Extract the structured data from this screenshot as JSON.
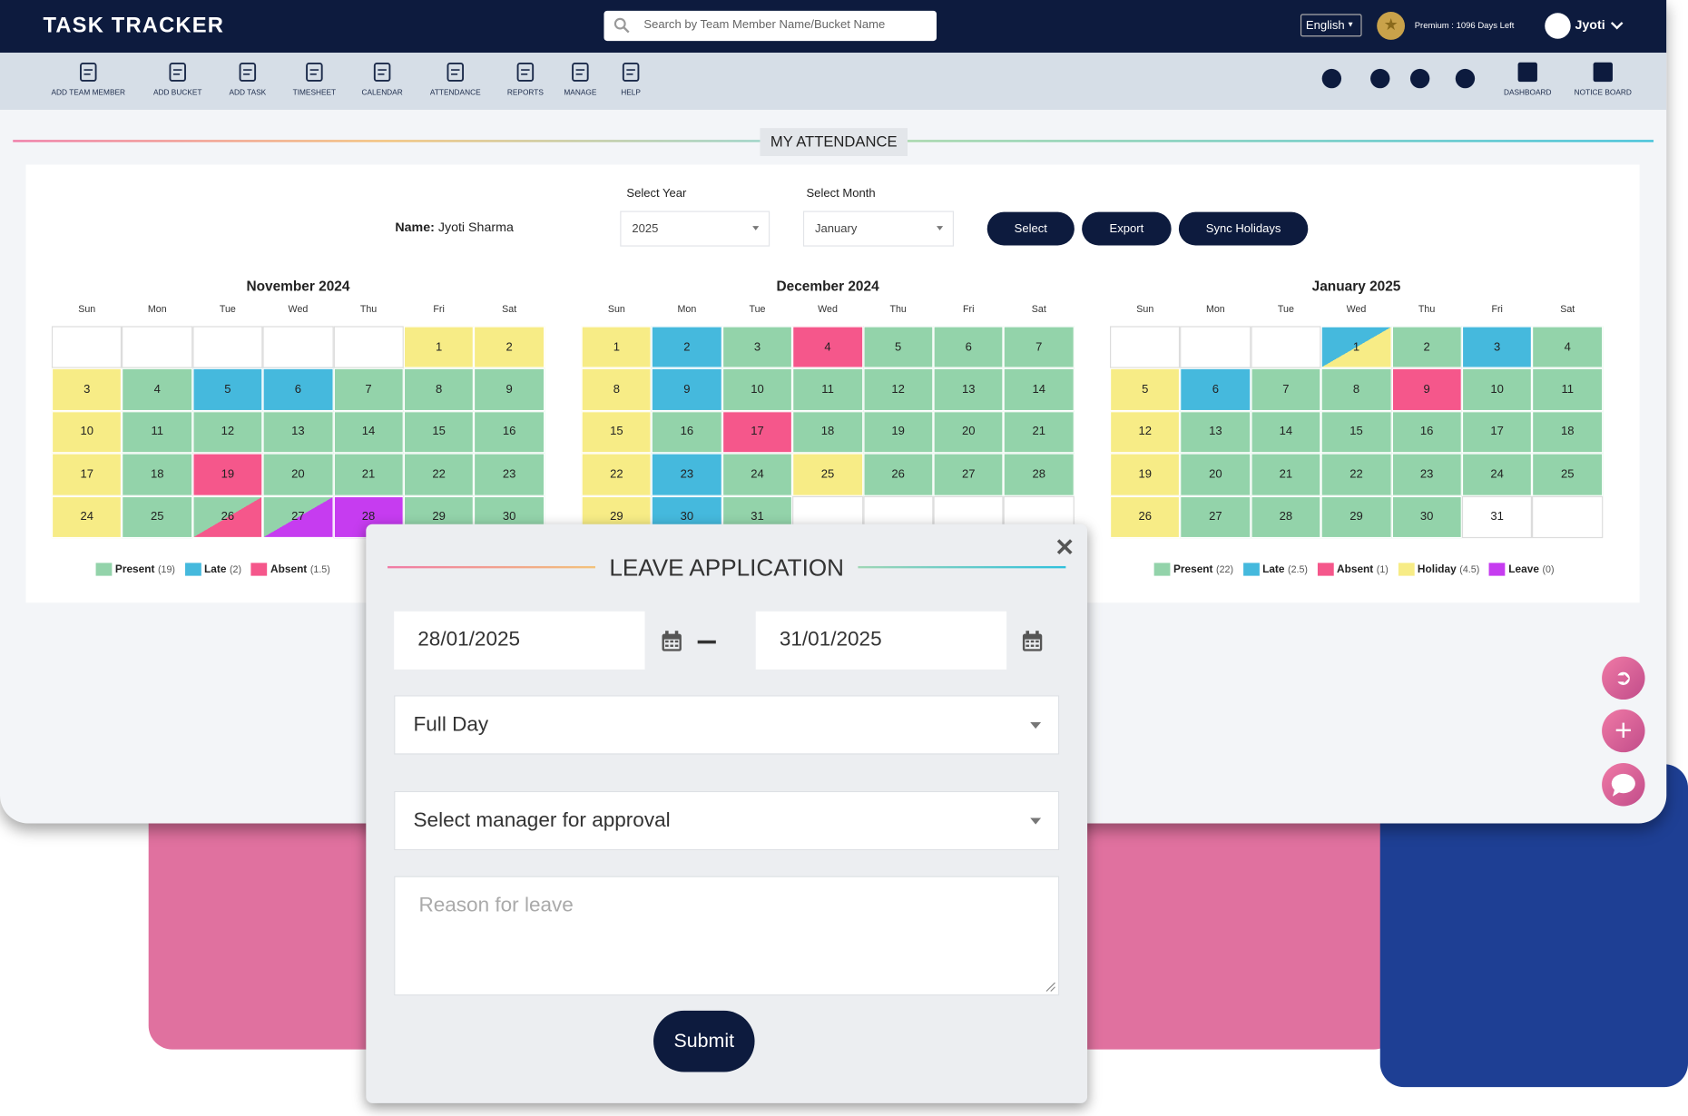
{
  "header": {
    "logo": "TASK TRACKER",
    "search_placeholder": "Search by Team Member Name/Bucket Name",
    "language": "English",
    "plan": "Premium : 1096 Days Left",
    "user": "Jyoti"
  },
  "toolbar": {
    "left": [
      "ADD TEAM MEMBER",
      "ADD BUCKET",
      "ADD TASK",
      "TIMESHEET",
      "CALENDAR",
      "ATTENDANCE",
      "REPORTS",
      "MANAGE",
      "HELP"
    ],
    "right": [
      "DASHBOARD",
      "NOTICE BOARD"
    ]
  },
  "page_title": "MY ATTENDANCE",
  "filters": {
    "name_label": "Name:",
    "name": "Jyoti Sharma",
    "year_label": "Select Year",
    "year": "2025",
    "month_label": "Select Month",
    "month": "January",
    "buttons": [
      "Select",
      "Export",
      "Sync Holidays"
    ]
  },
  "status_colors": {
    "present": "#93d3aa",
    "late": "#45b9dd",
    "absent": "#f5578b",
    "holiday": "#f7ec86",
    "leave": "#c63cf0",
    "none": "#ffffff"
  },
  "weekdays": [
    "Sun",
    "Mon",
    "Tue",
    "Wed",
    "Thu",
    "Fri",
    "Sat"
  ],
  "calendars": [
    {
      "title": "November 2024",
      "weeks": [
        [
          null,
          null,
          null,
          null,
          null,
          {
            "day": 1,
            "status": "holiday"
          },
          {
            "day": 2,
            "status": "holiday"
          }
        ],
        [
          {
            "day": 3,
            "status": "holiday"
          },
          {
            "day": 4,
            "status": "present"
          },
          {
            "day": 5,
            "status": "late"
          },
          {
            "day": 6,
            "status": "late"
          },
          {
            "day": 7,
            "status": "present"
          },
          {
            "day": 8,
            "status": "present"
          },
          {
            "day": 9,
            "status": "present"
          }
        ],
        [
          {
            "day": 10,
            "status": "holiday"
          },
          {
            "day": 11,
            "status": "present"
          },
          {
            "day": 12,
            "status": "present"
          },
          {
            "day": 13,
            "status": "present"
          },
          {
            "day": 14,
            "status": "present"
          },
          {
            "day": 15,
            "status": "present"
          },
          {
            "day": 16,
            "status": "present"
          }
        ],
        [
          {
            "day": 17,
            "status": "holiday"
          },
          {
            "day": 18,
            "status": "present"
          },
          {
            "day": 19,
            "status": "absent"
          },
          {
            "day": 20,
            "status": "present"
          },
          {
            "day": 21,
            "status": "present"
          },
          {
            "day": 22,
            "status": "present"
          },
          {
            "day": 23,
            "status": "present"
          }
        ],
        [
          {
            "day": 24,
            "status": "holiday"
          },
          {
            "day": 25,
            "status": "present"
          },
          {
            "day": 26,
            "status": [
              "present",
              "absent"
            ]
          },
          {
            "day": 27,
            "status": [
              "present",
              "leave"
            ]
          },
          {
            "day": 28,
            "status": "leave"
          },
          {
            "day": 29,
            "status": "present"
          },
          {
            "day": 30,
            "status": "present"
          }
        ]
      ],
      "legend": [
        {
          "label": "Present",
          "count": "(19)",
          "status": "present"
        },
        {
          "label": "Late",
          "count": "(2)",
          "status": "late"
        },
        {
          "label": "Absent",
          "count": "(1.5)",
          "status": "absent"
        }
      ]
    },
    {
      "title": "December 2024",
      "weeks": [
        [
          {
            "day": 1,
            "status": "holiday"
          },
          {
            "day": 2,
            "status": "late"
          },
          {
            "day": 3,
            "status": "present"
          },
          {
            "day": 4,
            "status": "absent"
          },
          {
            "day": 5,
            "status": "present"
          },
          {
            "day": 6,
            "status": "present"
          },
          {
            "day": 7,
            "status": "present"
          }
        ],
        [
          {
            "day": 8,
            "status": "holiday"
          },
          {
            "day": 9,
            "status": "late"
          },
          {
            "day": 10,
            "status": "present"
          },
          {
            "day": 11,
            "status": "present"
          },
          {
            "day": 12,
            "status": "present"
          },
          {
            "day": 13,
            "status": "present"
          },
          {
            "day": 14,
            "status": "present"
          }
        ],
        [
          {
            "day": 15,
            "status": "holiday"
          },
          {
            "day": 16,
            "status": "present"
          },
          {
            "day": 17,
            "status": "absent"
          },
          {
            "day": 18,
            "status": "present"
          },
          {
            "day": 19,
            "status": "present"
          },
          {
            "day": 20,
            "status": "present"
          },
          {
            "day": 21,
            "status": "present"
          }
        ],
        [
          {
            "day": 22,
            "status": "holiday"
          },
          {
            "day": 23,
            "status": "late"
          },
          {
            "day": 24,
            "status": "present"
          },
          {
            "day": 25,
            "status": "holiday"
          },
          {
            "day": 26,
            "status": "present"
          },
          {
            "day": 27,
            "status": "present"
          },
          {
            "day": 28,
            "status": "present"
          }
        ],
        [
          {
            "day": 29,
            "status": "holiday"
          },
          {
            "day": 30,
            "status": "late"
          },
          {
            "day": 31,
            "status": "present"
          },
          null,
          null,
          null,
          null
        ]
      ],
      "legend": []
    },
    {
      "title": "January 2025",
      "weeks": [
        [
          null,
          null,
          null,
          {
            "day": 1,
            "status": [
              "late",
              "holiday"
            ]
          },
          {
            "day": 2,
            "status": "present"
          },
          {
            "day": 3,
            "status": "late"
          },
          {
            "day": 4,
            "status": "present"
          }
        ],
        [
          {
            "day": 5,
            "status": "holiday"
          },
          {
            "day": 6,
            "status": "late"
          },
          {
            "day": 7,
            "status": "present"
          },
          {
            "day": 8,
            "status": "present"
          },
          {
            "day": 9,
            "status": "absent"
          },
          {
            "day": 10,
            "status": "present"
          },
          {
            "day": 11,
            "status": "present"
          }
        ],
        [
          {
            "day": 12,
            "status": "holiday"
          },
          {
            "day": 13,
            "status": "present"
          },
          {
            "day": 14,
            "status": "present"
          },
          {
            "day": 15,
            "status": "present"
          },
          {
            "day": 16,
            "status": "present"
          },
          {
            "day": 17,
            "status": "present"
          },
          {
            "day": 18,
            "status": "present"
          }
        ],
        [
          {
            "day": 19,
            "status": "holiday"
          },
          {
            "day": 20,
            "status": "present"
          },
          {
            "day": 21,
            "status": "present"
          },
          {
            "day": 22,
            "status": "present"
          },
          {
            "day": 23,
            "status": "present"
          },
          {
            "day": 24,
            "status": "present"
          },
          {
            "day": 25,
            "status": "present"
          }
        ],
        [
          {
            "day": 26,
            "status": "holiday"
          },
          {
            "day": 27,
            "status": "present"
          },
          {
            "day": 28,
            "status": "present"
          },
          {
            "day": 29,
            "status": "present"
          },
          {
            "day": 30,
            "status": "present"
          },
          {
            "day": 31,
            "status": "none"
          },
          null
        ]
      ],
      "legend": [
        {
          "label": "Present",
          "count": "(22)",
          "status": "present"
        },
        {
          "label": "Late",
          "count": "(2.5)",
          "status": "late"
        },
        {
          "label": "Absent",
          "count": "(1)",
          "status": "absent"
        },
        {
          "label": "Holiday",
          "count": "(4.5)",
          "status": "holiday"
        },
        {
          "label": "Leave",
          "count": "(0)",
          "status": "leave"
        }
      ]
    }
  ],
  "modal": {
    "title": "LEAVE APPLICATION",
    "from_date": "28/01/2025",
    "to_date": "31/01/2025",
    "duration": "Full Day",
    "manager_placeholder": "Select manager for approval",
    "reason_placeholder": "Reason for leave",
    "submit": "Submit"
  }
}
